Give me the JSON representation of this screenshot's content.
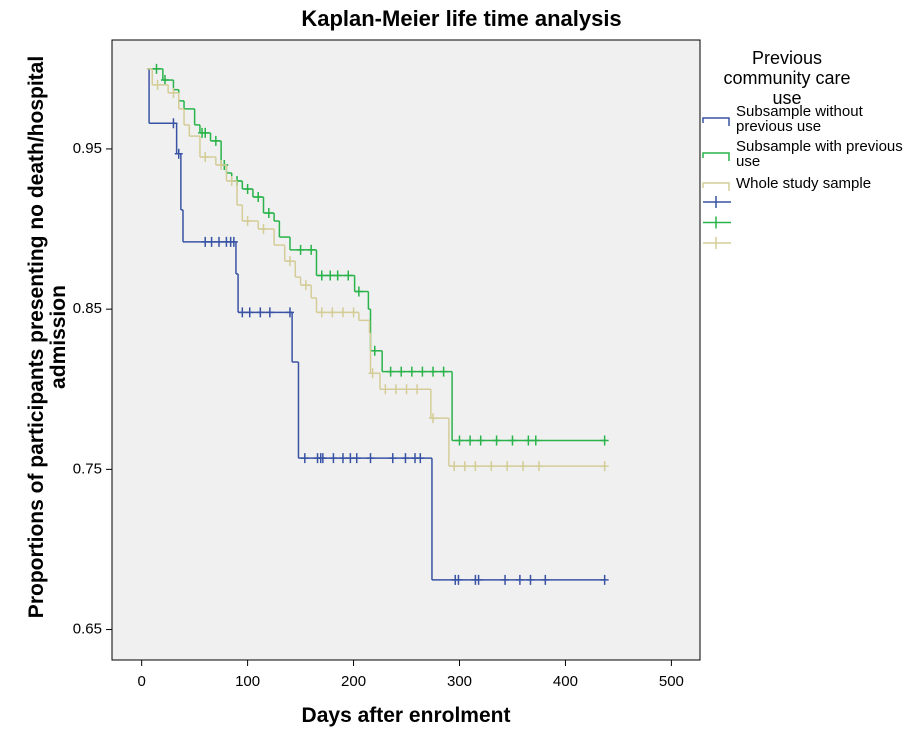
{
  "chart_data": {
    "type": "kaplan-meier",
    "title": "Kaplan-Meier life time analysis",
    "x_label": "Days after enrolment",
    "y_label": "Proportions of participants presenting no death/hospital admission",
    "legend_title": "Previous community care use",
    "xlim": [
      -28,
      527
    ],
    "xticks": [
      0,
      100,
      200,
      300,
      400,
      500
    ],
    "ylim": [
      0.631,
      1.018
    ],
    "yticks": [
      0.65,
      0.75,
      0.85,
      0.95
    ],
    "series": [
      {
        "name": "Subsample without previous use",
        "color": "#3953a4",
        "x": [
          5,
          7,
          33,
          37,
          39,
          89,
          91,
          142,
          148,
          274,
          437
        ],
        "values": [
          1.0,
          0.966,
          0.947,
          0.912,
          0.892,
          0.872,
          0.848,
          0.817,
          0.757,
          0.681,
          0.681
        ],
        "censored_x": [
          30,
          35,
          60,
          66,
          73,
          80,
          84,
          87,
          95,
          102,
          112,
          121,
          140,
          154,
          166,
          169,
          171,
          181,
          190,
          197,
          203,
          216,
          237,
          249,
          258,
          263,
          296,
          299,
          315,
          318,
          343,
          357,
          367,
          381,
          437
        ],
        "censored_values": [
          0.966,
          0.947,
          0.892,
          0.892,
          0.892,
          0.892,
          0.892,
          0.892,
          0.848,
          0.848,
          0.848,
          0.848,
          0.848,
          0.757,
          0.757,
          0.757,
          0.757,
          0.757,
          0.757,
          0.757,
          0.757,
          0.757,
          0.757,
          0.757,
          0.757,
          0.757,
          0.681,
          0.681,
          0.681,
          0.681,
          0.681,
          0.681,
          0.681,
          0.681,
          0.681
        ]
      },
      {
        "name": "Subsample with previous use",
        "color": "#29b34a",
        "x": [
          5,
          20,
          30,
          35,
          40,
          50,
          55,
          65,
          75,
          80,
          85,
          95,
          105,
          115,
          125,
          130,
          140,
          165,
          201,
          214,
          216,
          227,
          293,
          437
        ],
        "values": [
          1.0,
          0.993,
          0.987,
          0.98,
          0.975,
          0.965,
          0.96,
          0.955,
          0.94,
          0.935,
          0.93,
          0.925,
          0.92,
          0.91,
          0.905,
          0.895,
          0.887,
          0.871,
          0.861,
          0.85,
          0.824,
          0.811,
          0.768,
          0.768
        ],
        "censored_x": [
          14,
          22,
          57,
          60,
          70,
          78,
          90,
          100,
          110,
          120,
          150,
          160,
          170,
          178,
          185,
          195,
          205,
          220,
          235,
          245,
          255,
          265,
          275,
          285,
          300,
          310,
          320,
          335,
          350,
          365,
          372,
          437
        ],
        "censored_values": [
          1.0,
          0.993,
          0.96,
          0.96,
          0.955,
          0.94,
          0.93,
          0.925,
          0.92,
          0.91,
          0.887,
          0.887,
          0.871,
          0.871,
          0.871,
          0.871,
          0.861,
          0.824,
          0.811,
          0.811,
          0.811,
          0.811,
          0.811,
          0.811,
          0.768,
          0.768,
          0.768,
          0.768,
          0.768,
          0.768,
          0.768,
          0.768
        ]
      },
      {
        "name": "Whole study sample",
        "color": "#d4cd98",
        "x": [
          5,
          10,
          25,
          35,
          40,
          45,
          55,
          70,
          80,
          90,
          95,
          110,
          125,
          135,
          145,
          150,
          160,
          165,
          205,
          215,
          216,
          225,
          273,
          290,
          437
        ],
        "values": [
          1.0,
          0.99,
          0.985,
          0.975,
          0.965,
          0.958,
          0.945,
          0.94,
          0.93,
          0.915,
          0.905,
          0.9,
          0.89,
          0.88,
          0.87,
          0.865,
          0.857,
          0.848,
          0.843,
          0.835,
          0.81,
          0.8,
          0.782,
          0.752,
          0.752
        ],
        "censored_x": [
          15,
          30,
          60,
          75,
          85,
          100,
          115,
          140,
          155,
          170,
          180,
          190,
          200,
          218,
          230,
          240,
          250,
          260,
          275,
          295,
          305,
          315,
          330,
          345,
          360,
          375,
          437
        ],
        "censored_values": [
          0.99,
          0.985,
          0.945,
          0.94,
          0.93,
          0.905,
          0.9,
          0.88,
          0.865,
          0.848,
          0.848,
          0.848,
          0.848,
          0.81,
          0.8,
          0.8,
          0.8,
          0.8,
          0.782,
          0.752,
          0.752,
          0.752,
          0.752,
          0.752,
          0.752,
          0.752,
          0.752
        ]
      }
    ]
  }
}
